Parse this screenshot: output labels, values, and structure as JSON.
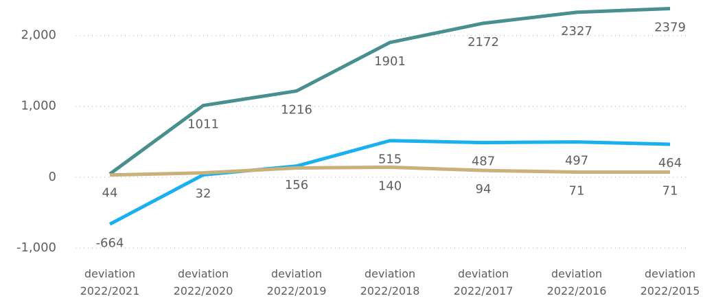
{
  "chart_data": {
    "type": "line",
    "categories": [
      "deviation 2022/2021",
      "deviation 2022/2020",
      "deviation 2022/2019",
      "deviation 2022/2018",
      "deviation 2022/2017",
      "deviation 2022/2016",
      "deviation 2022/2015"
    ],
    "series": [
      {
        "color": "#4a8f8f",
        "values": [
          44,
          1011,
          1216,
          1901,
          2172,
          2327,
          2379
        ],
        "value_labels": [
          "44",
          "1011",
          "1216",
          "1901",
          "2172",
          "2327",
          "2379"
        ]
      },
      {
        "color": "#1ab0f0",
        "values": [
          -664,
          32,
          156,
          515,
          487,
          497,
          464
        ],
        "value_labels": [
          "-664",
          "32",
          "156",
          "515",
          "487",
          "497",
          "464"
        ]
      },
      {
        "color": "#c8b27a",
        "values": [
          30,
          60,
          130,
          140,
          94,
          71,
          71
        ],
        "value_labels": [
          null,
          null,
          null,
          "140",
          "94",
          "71",
          "71"
        ]
      }
    ],
    "ylim": [
      -1000,
      2500
    ],
    "yticks": [
      {
        "value": -1000,
        "label": "-1,000"
      },
      0,
      {
        "value": 1000,
        "label": "1,000"
      },
      {
        "value": 2000,
        "label": "2,000"
      }
    ],
    "grid": true
  }
}
